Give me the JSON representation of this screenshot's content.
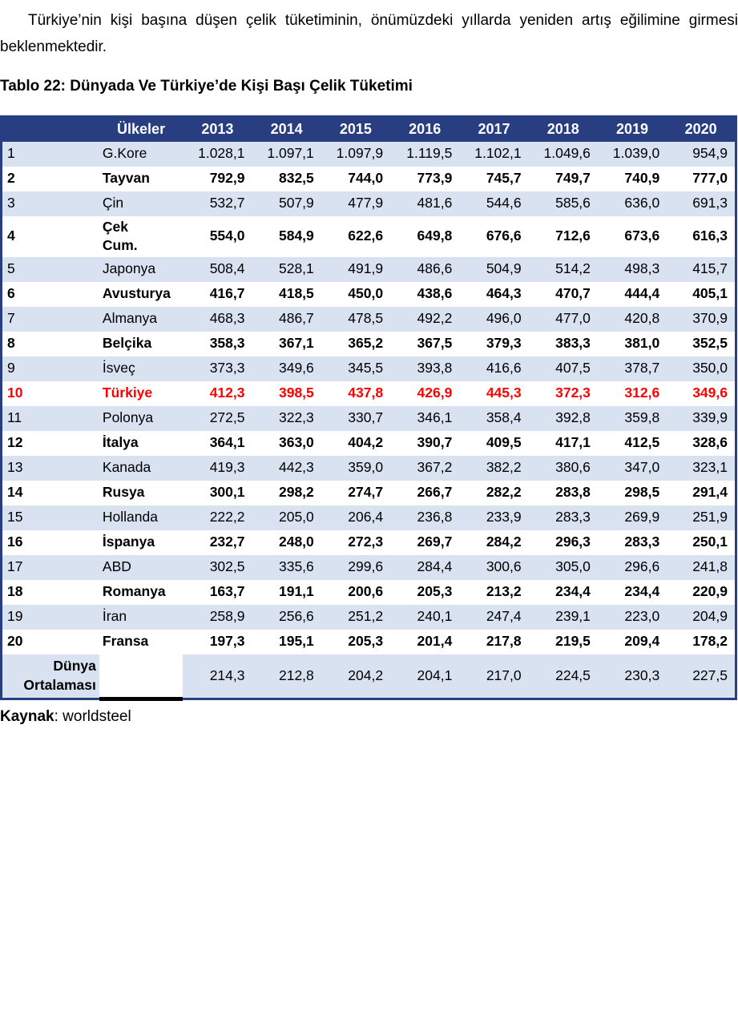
{
  "intro": "Türkiye’nin kişi başına düşen çelik tüketiminin, önümüzdeki yıllarda yeniden artış eğilimine girmesi beklenmektedir.",
  "table_title": "Tablo 22: Dünyada Ve Türkiye’de Kişi Başı Çelik Tüketimi",
  "source": {
    "label": "Kaynak",
    "rest": ": worldsteel"
  },
  "colors": {
    "header_bg": "#293E80",
    "border": "#293E80",
    "band_bg": "#D9E2F1",
    "highlight": "#FF0000"
  },
  "chart_data": {
    "type": "table",
    "columns": [
      "",
      "Ülkeler",
      "2013",
      "2014",
      "2015",
      "2016",
      "2017",
      "2018",
      "2019",
      "2020"
    ],
    "rows": [
      {
        "rank": "1",
        "country": "G.Kore",
        "highlight": false,
        "values": [
          "1.028,1",
          "1.097,1",
          "1.097,9",
          "1.119,5",
          "1.102,1",
          "1.049,6",
          "1.039,0",
          "954,9"
        ]
      },
      {
        "rank": "2",
        "country": "Tayvan",
        "highlight": false,
        "values": [
          "792,9",
          "832,5",
          "744,0",
          "773,9",
          "745,7",
          "749,7",
          "740,9",
          "777,0"
        ]
      },
      {
        "rank": "3",
        "country": "Çin",
        "highlight": false,
        "values": [
          "532,7",
          "507,9",
          "477,9",
          "481,6",
          "544,6",
          "585,6",
          "636,0",
          "691,3"
        ]
      },
      {
        "rank": "4",
        "country": "Çek\nCum.",
        "highlight": false,
        "values": [
          "554,0",
          "584,9",
          "622,6",
          "649,8",
          "676,6",
          "712,6",
          "673,6",
          "616,3"
        ]
      },
      {
        "rank": "5",
        "country": "Japonya",
        "highlight": false,
        "values": [
          "508,4",
          "528,1",
          "491,9",
          "486,6",
          "504,9",
          "514,2",
          "498,3",
          "415,7"
        ]
      },
      {
        "rank": "6",
        "country": "Avusturya",
        "highlight": false,
        "values": [
          "416,7",
          "418,5",
          "450,0",
          "438,6",
          "464,3",
          "470,7",
          "444,4",
          "405,1"
        ]
      },
      {
        "rank": "7",
        "country": "Almanya",
        "highlight": false,
        "values": [
          "468,3",
          "486,7",
          "478,5",
          "492,2",
          "496,0",
          "477,0",
          "420,8",
          "370,9"
        ]
      },
      {
        "rank": "8",
        "country": "Belçika",
        "highlight": false,
        "values": [
          "358,3",
          "367,1",
          "365,2",
          "367,5",
          "379,3",
          "383,3",
          "381,0",
          "352,5"
        ]
      },
      {
        "rank": "9",
        "country": "İsveç",
        "highlight": false,
        "values": [
          "373,3",
          "349,6",
          "345,5",
          "393,8",
          "416,6",
          "407,5",
          "378,7",
          "350,0"
        ]
      },
      {
        "rank": "10",
        "country": "Türkiye",
        "highlight": true,
        "values": [
          "412,3",
          "398,5",
          "437,8",
          "426,9",
          "445,3",
          "372,3",
          "312,6",
          "349,6"
        ]
      },
      {
        "rank": "11",
        "country": "Polonya",
        "highlight": false,
        "values": [
          "272,5",
          "322,3",
          "330,7",
          "346,1",
          "358,4",
          "392,8",
          "359,8",
          "339,9"
        ]
      },
      {
        "rank": "12",
        "country": "İtalya",
        "highlight": false,
        "values": [
          "364,1",
          "363,0",
          "404,2",
          "390,7",
          "409,5",
          "417,1",
          "412,5",
          "328,6"
        ]
      },
      {
        "rank": "13",
        "country": "Kanada",
        "highlight": false,
        "values": [
          "419,3",
          "442,3",
          "359,0",
          "367,2",
          "382,2",
          "380,6",
          "347,0",
          "323,1"
        ]
      },
      {
        "rank": "14",
        "country": "Rusya",
        "highlight": false,
        "values": [
          "300,1",
          "298,2",
          "274,7",
          "266,7",
          "282,2",
          "283,8",
          "298,5",
          "291,4"
        ]
      },
      {
        "rank": "15",
        "country": "Hollanda",
        "highlight": false,
        "values": [
          "222,2",
          "205,0",
          "206,4",
          "236,8",
          "233,9",
          "283,3",
          "269,9",
          "251,9"
        ]
      },
      {
        "rank": "16",
        "country": "İspanya",
        "highlight": false,
        "values": [
          "232,7",
          "248,0",
          "272,3",
          "269,7",
          "284,2",
          "296,3",
          "283,3",
          "250,1"
        ]
      },
      {
        "rank": "17",
        "country": "ABD",
        "highlight": false,
        "values": [
          "302,5",
          "335,6",
          "299,6",
          "284,4",
          "300,6",
          "305,0",
          "296,6",
          "241,8"
        ]
      },
      {
        "rank": "18",
        "country": "Romanya",
        "highlight": false,
        "values": [
          "163,7",
          "191,1",
          "200,6",
          "205,3",
          "213,2",
          "234,4",
          "234,4",
          "220,9"
        ]
      },
      {
        "rank": "19",
        "country": "İran",
        "highlight": false,
        "values": [
          "258,9",
          "256,6",
          "251,2",
          "240,1",
          "247,4",
          "239,1",
          "223,0",
          "204,9"
        ]
      },
      {
        "rank": "20",
        "country": "Fransa",
        "highlight": false,
        "values": [
          "197,3",
          "195,1",
          "205,3",
          "201,4",
          "217,8",
          "219,5",
          "209,4",
          "178,2"
        ]
      }
    ],
    "world_average": {
      "label": "Dünya\nOrtalaması",
      "values": [
        "214,3",
        "212,8",
        "204,2",
        "204,1",
        "217,0",
        "224,5",
        "230,3",
        "227,5"
      ]
    }
  }
}
